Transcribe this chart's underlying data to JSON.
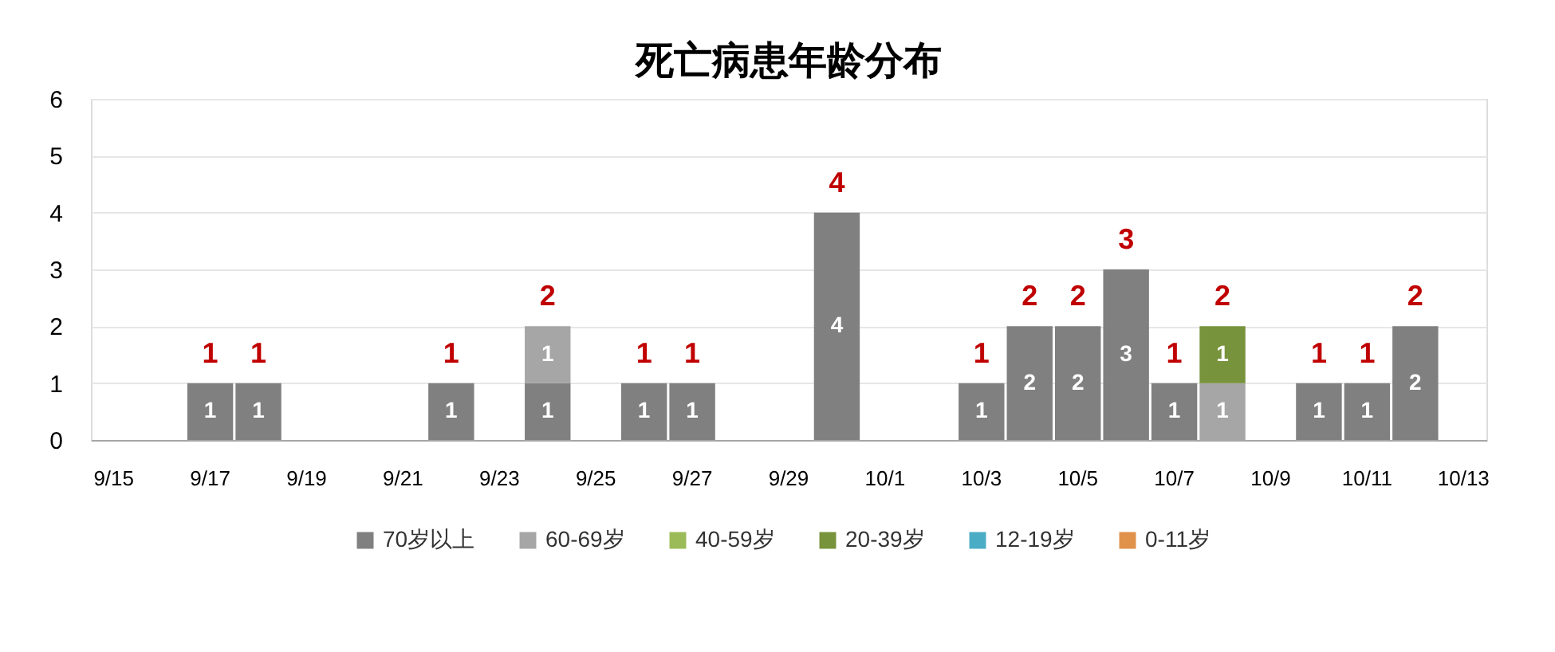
{
  "chart_data": {
    "type": "bar",
    "title": "死亡病患年龄分布",
    "categories": [
      "9/15",
      null,
      "9/17",
      null,
      "9/19",
      null,
      "9/21",
      null,
      "9/23",
      null,
      "9/25",
      null,
      "9/27",
      null,
      "9/29",
      null,
      "10/1",
      null,
      "10/3",
      null,
      "10/5",
      null,
      "10/7",
      null,
      "10/9",
      null,
      "10/11",
      null,
      "10/13"
    ],
    "stacked": true,
    "series": [
      {
        "name": "70岁以上",
        "color": "#808080",
        "values": [
          null,
          null,
          1,
          1,
          null,
          null,
          null,
          1,
          null,
          1,
          null,
          1,
          1,
          null,
          null,
          4,
          null,
          null,
          1,
          2,
          2,
          3,
          1,
          null,
          null,
          1,
          1,
          2,
          null
        ]
      },
      {
        "name": "60-69岁",
        "color": "#a6a6a6",
        "values": [
          null,
          null,
          null,
          null,
          null,
          null,
          null,
          null,
          null,
          1,
          null,
          null,
          null,
          null,
          null,
          null,
          null,
          null,
          null,
          null,
          null,
          null,
          null,
          1,
          null,
          null,
          null,
          null,
          null
        ]
      },
      {
        "name": "40-59岁",
        "color": "#9bbb59",
        "values": [
          null,
          null,
          null,
          null,
          null,
          null,
          null,
          null,
          null,
          null,
          null,
          null,
          null,
          null,
          null,
          null,
          null,
          null,
          null,
          null,
          null,
          null,
          null,
          null,
          null,
          null,
          null,
          null,
          null
        ]
      },
      {
        "name": "20-39岁",
        "color": "#77933c",
        "values": [
          null,
          null,
          null,
          null,
          null,
          null,
          null,
          null,
          null,
          null,
          null,
          null,
          null,
          null,
          null,
          null,
          null,
          null,
          null,
          null,
          null,
          null,
          null,
          1,
          null,
          null,
          null,
          null,
          null
        ]
      },
      {
        "name": "12-19岁",
        "color": "#4bacc6",
        "values": [
          null,
          null,
          null,
          null,
          null,
          null,
          null,
          null,
          null,
          null,
          null,
          null,
          null,
          null,
          null,
          null,
          null,
          null,
          null,
          null,
          null,
          null,
          null,
          null,
          null,
          null,
          null,
          null,
          null
        ]
      },
      {
        "name": "0-11岁",
        "color": "#e0914a",
        "values": [
          null,
          null,
          null,
          null,
          null,
          null,
          null,
          null,
          null,
          null,
          null,
          null,
          null,
          null,
          null,
          null,
          null,
          null,
          null,
          null,
          null,
          null,
          null,
          null,
          null,
          null,
          null,
          null,
          null
        ]
      }
    ],
    "totals": [
      null,
      null,
      "1",
      "1",
      null,
      null,
      null,
      "1",
      null,
      "2",
      null,
      "1",
      "1",
      null,
      null,
      "4",
      null,
      null,
      "1",
      "2",
      "2",
      "3",
      "1",
      "2",
      null,
      "1",
      "1",
      "2",
      null
    ],
    "data_labels": true,
    "ylim": [
      0,
      6
    ],
    "yticks": [
      0,
      1,
      2,
      3,
      4,
      5,
      6
    ],
    "grid": "y",
    "legend": "bottom"
  }
}
